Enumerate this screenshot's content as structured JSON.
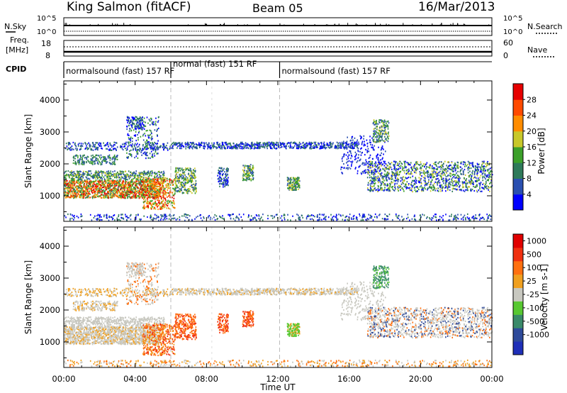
{
  "header": {
    "station": "King Salmon (fitACF)",
    "beam": "Beam 05",
    "date": "16/Mar/2013"
  },
  "top_panels": {
    "nsky_label": "N.Sky",
    "nsearch_label": "N.Search",
    "nsky_ticks": [
      "10^5",
      "10^0"
    ],
    "nsearch_ticks": [
      "10^5",
      "10^0"
    ],
    "freq_label_1": "Freq.",
    "freq_label_2": "[MHz]",
    "freq_ticks": [
      "18",
      "8"
    ],
    "nave_label": "Nave",
    "nave_ticks": [
      "60",
      "0"
    ],
    "cpid_label": "CPID",
    "cpid_segments": [
      {
        "label": "normalsound (fast) 157 RF",
        "start": 0,
        "end": 6
      },
      {
        "label": "normal (fast) 151 RF",
        "start": 6,
        "end": 12.1
      },
      {
        "label": "normalsound (fast) 157 RF",
        "start": 12.1,
        "end": 24
      }
    ]
  },
  "chart_data": [
    {
      "type": "heatmap",
      "name": "power",
      "ylabel": "Slant Range [km]",
      "xlabel": "",
      "xlim": [
        0,
        24
      ],
      "ylim": [
        200,
        4600
      ],
      "yticks": [
        "4000",
        "3000",
        "2000",
        "1000"
      ],
      "colorbar_label": "Power [dB]",
      "colorbar_ticks": [
        "28",
        "24",
        "20",
        "16",
        "12",
        "8",
        "4"
      ],
      "colorbar_colors": [
        "#0000ff",
        "#2a4fb0",
        "#2e7a5a",
        "#3ca02a",
        "#c8c82a",
        "#ff8c00",
        "#ff4a00",
        "#e60000"
      ]
    },
    {
      "type": "heatmap",
      "name": "velocity",
      "ylabel": "Slant Range [km]",
      "xlabel": "Time UT",
      "xlim": [
        0,
        24
      ],
      "ylim": [
        200,
        4600
      ],
      "yticks": [
        "4000",
        "3000",
        "2000",
        "1000"
      ],
      "xticks": [
        "00:00",
        "04:00",
        "08:00",
        "12:00",
        "16:00",
        "20:00",
        "00:00"
      ],
      "colorbar_label": "Velocity [m s-1]",
      "colorbar_ticks": [
        "1000",
        "500",
        "100",
        "25",
        "-25",
        "-100",
        "-500",
        "-1000"
      ],
      "colorbar_colors": [
        "#1f2fb8",
        "#2e4a9a",
        "#3a8a6a",
        "#58c832",
        "#c8c8c0",
        "#f0a020",
        "#ff7010",
        "#f03010",
        "#e00000"
      ]
    }
  ]
}
